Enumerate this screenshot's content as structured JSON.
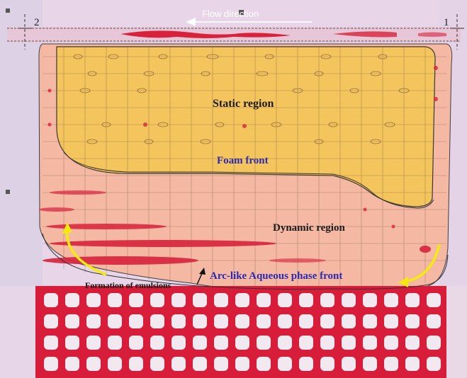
{
  "annotations": {
    "flow_direction": "Flow direction",
    "inlet_number": "1",
    "outlet_number": "2",
    "static_region": "Static region",
    "foam_front": "Foam front",
    "dynamic_region": "Dynamic region",
    "arc_front": "Arc-like Aqueous phase front",
    "emulsions": "Formation of emulsions"
  },
  "colors": {
    "static_fill": "#f3c55a",
    "dynamic_fill": "#f6b79a",
    "aqueous_red": "#d81d3a",
    "front_label_blue": "#2a2ab0",
    "arrow_yellow": "#f5ea10",
    "background": "#e9d8e6"
  }
}
